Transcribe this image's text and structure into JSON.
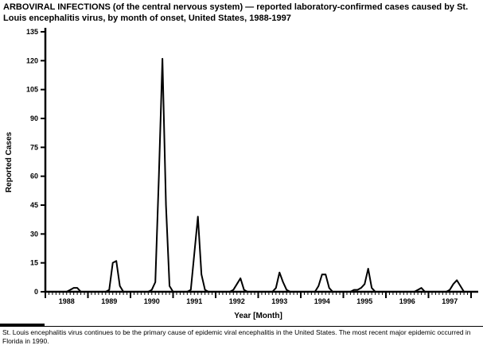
{
  "title": "ARBOVIRAL INFECTIONS (of the central nervous system) — reported laboratory-confirmed cases caused by St. Louis encephalitis virus, by month of onset, United States, 1988-1997",
  "footnote": "St. Louis encephalitis virus continues to be the primary cause of epidemic viral encephalitis in the United States. The most recent major epidemic occurred in Florida in 1990.",
  "chart_data": {
    "type": "line",
    "ylabel": "Reported Cases",
    "xlabel": "Year [Month]",
    "ylim": [
      0,
      135
    ],
    "yticks": [
      0,
      15,
      30,
      45,
      60,
      75,
      90,
      105,
      120,
      135
    ],
    "grid": false,
    "line_color": "#000000",
    "years": [
      "1988",
      "1989",
      "1990",
      "1991",
      "1992",
      "1993",
      "1994",
      "1995",
      "1996",
      "1997"
    ],
    "x_unit": "month",
    "series": [
      {
        "name": "Reported laboratory-confirmed St. Louis encephalitis cases",
        "monthly_values": [
          0,
          0,
          0,
          0,
          0,
          0,
          0,
          1,
          2,
          2,
          0,
          0,
          0,
          0,
          0,
          0,
          0,
          0,
          1,
          15,
          16,
          3,
          0,
          0,
          0,
          0,
          0,
          0,
          0,
          0,
          1,
          5,
          60,
          121,
          45,
          3,
          0,
          0,
          0,
          0,
          0,
          1,
          20,
          39,
          9,
          1,
          0,
          0,
          0,
          0,
          0,
          0,
          0,
          1,
          4,
          7,
          1,
          0,
          0,
          0,
          0,
          0,
          0,
          0,
          0,
          2,
          10,
          5,
          1,
          0,
          0,
          0,
          0,
          0,
          0,
          0,
          0,
          3,
          9,
          9,
          2,
          0,
          0,
          0,
          0,
          0,
          0,
          1,
          1,
          2,
          4,
          12,
          2,
          0,
          0,
          0,
          0,
          0,
          0,
          0,
          0,
          0,
          0,
          0,
          0,
          1,
          2,
          0,
          0,
          0,
          0,
          0,
          0,
          0,
          1,
          4,
          6,
          3,
          0,
          0
        ]
      }
    ],
    "annotations": {
      "peak_year": "1990",
      "peak_value": 121
    }
  }
}
